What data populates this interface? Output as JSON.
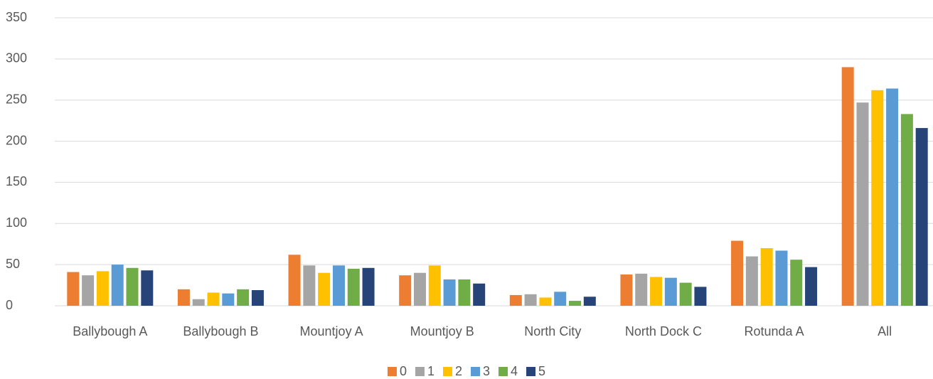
{
  "chart_data": {
    "type": "bar",
    "categories": [
      "Ballybough A",
      "Ballybough B",
      "Mountjoy A",
      "Mountjoy B",
      "North City",
      "North Dock C",
      "Rotunda A",
      "All"
    ],
    "series": [
      {
        "name": "0",
        "color": "#ED7D31",
        "values": [
          41,
          20,
          62,
          37,
          13,
          38,
          79,
          290
        ]
      },
      {
        "name": "1",
        "color": "#A5A5A5",
        "values": [
          37,
          8,
          49,
          40,
          14,
          39,
          60,
          247
        ]
      },
      {
        "name": "2",
        "color": "#FFC000",
        "values": [
          42,
          16,
          40,
          49,
          10,
          35,
          70,
          262
        ]
      },
      {
        "name": "3",
        "color": "#5B9BD5",
        "values": [
          50,
          15,
          49,
          32,
          17,
          34,
          67,
          264
        ]
      },
      {
        "name": "4",
        "color": "#70AD47",
        "values": [
          46,
          20,
          45,
          32,
          6,
          28,
          56,
          233
        ]
      },
      {
        "name": "5",
        "color": "#264478",
        "values": [
          43,
          19,
          46,
          27,
          11,
          23,
          47,
          216
        ]
      }
    ],
    "ylim": [
      0,
      350
    ],
    "yticks": [
      0,
      50,
      100,
      150,
      200,
      250,
      300,
      350
    ],
    "grid": true,
    "legend": "bottom"
  }
}
